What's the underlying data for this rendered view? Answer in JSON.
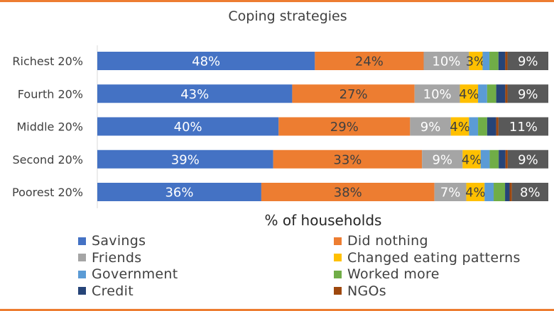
{
  "chart_data": {
    "type": "bar",
    "orientation": "horizontal",
    "stacked": true,
    "normalized": true,
    "title": "Coping strategies",
    "xlabel": "% of households",
    "ylabel": "",
    "xlim": [
      0,
      100
    ],
    "categories": [
      "Richest 20%",
      "Fourth 20%",
      "Middle 20%",
      "Second 20%",
      "Poorest 20%"
    ],
    "series": [
      {
        "name": "Savings",
        "color": "#4472c4",
        "values": [
          48,
          43,
          40,
          39,
          36
        ],
        "labels": [
          "48%",
          "43%",
          "40%",
          "39%",
          "36%"
        ]
      },
      {
        "name": "Did nothing",
        "color": "#ed7d31",
        "values": [
          24,
          27,
          29,
          33,
          38
        ],
        "labels": [
          "24%",
          "27%",
          "29%",
          "33%",
          "38%"
        ]
      },
      {
        "name": "Friends",
        "color": "#a5a5a5",
        "values": [
          10,
          10,
          9,
          9,
          7
        ],
        "labels": [
          "10%",
          "10%",
          "9%",
          "9%",
          "7%"
        ]
      },
      {
        "name": "Changed eating patterns",
        "color": "#ffc000",
        "values": [
          3,
          4,
          4,
          4,
          4
        ],
        "labels": [
          "3%",
          "4%",
          "4%",
          "4%",
          "4%"
        ]
      },
      {
        "name": "Government",
        "color": "#5b9bd5",
        "values": [
          1.5,
          2,
          2,
          2,
          2
        ],
        "labels": [
          "",
          "",
          "",
          "",
          ""
        ]
      },
      {
        "name": "Worked more",
        "color": "#70ad47",
        "values": [
          2,
          2,
          2,
          2,
          2.5
        ],
        "labels": [
          "",
          "",
          "",
          "",
          ""
        ]
      },
      {
        "name": "Credit",
        "color": "#264478",
        "values": [
          1.5,
          2,
          2,
          1.5,
          1
        ],
        "labels": [
          "",
          "",
          "",
          "",
          ""
        ]
      },
      {
        "name": "NGOs",
        "color": "#9e480e",
        "values": [
          0.5,
          0.5,
          0.5,
          0.5,
          0.5
        ],
        "labels": [
          "",
          "",
          "",
          "",
          ""
        ]
      },
      {
        "name": "",
        "color": "#595959",
        "values": [
          9,
          9,
          11,
          9,
          8
        ],
        "labels": [
          "9%",
          "9%",
          "11%",
          "9%",
          "8%"
        ]
      }
    ],
    "legend_position": "bottom",
    "grid": false
  }
}
